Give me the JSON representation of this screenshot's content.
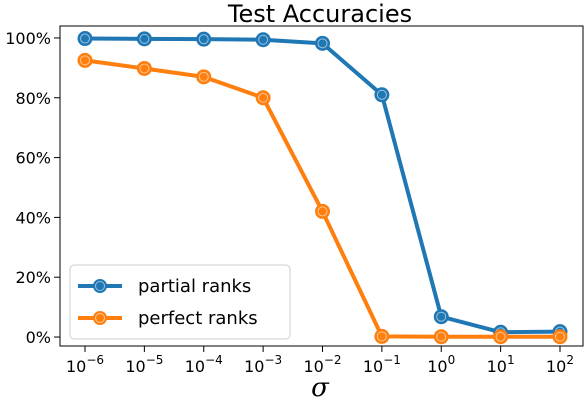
{
  "chart_data": {
    "type": "line",
    "title": "Test Accuracies",
    "xlabel": "σ",
    "ylabel": "",
    "x": [
      1e-06,
      1e-05,
      0.0001,
      0.001,
      0.01,
      0.1,
      1,
      10,
      100
    ],
    "x_tick_labels": [
      {
        "base": "10",
        "exp": "−6"
      },
      {
        "base": "10",
        "exp": "−5"
      },
      {
        "base": "10",
        "exp": "−4"
      },
      {
        "base": "10",
        "exp": "−3"
      },
      {
        "base": "10",
        "exp": "−2"
      },
      {
        "base": "10",
        "exp": "−1"
      },
      {
        "base": "10",
        "exp": "0"
      },
      {
        "base": "10",
        "exp": "1"
      },
      {
        "base": "10",
        "exp": "2"
      }
    ],
    "xscale": "log",
    "ylim": [
      -0.03,
      1.04
    ],
    "y_ticks": [
      0,
      0.2,
      0.4,
      0.6,
      0.8,
      1.0
    ],
    "y_tick_labels": [
      "0%",
      "20%",
      "40%",
      "60%",
      "80%",
      "100%"
    ],
    "grid": false,
    "legend_position": "lower-left",
    "series": [
      {
        "name": "partial ranks",
        "color": "#1f77b4",
        "values": [
          0.998,
          0.997,
          0.996,
          0.994,
          0.982,
          0.81,
          0.068,
          0.016,
          0.018
        ]
      },
      {
        "name": "perfect ranks",
        "color": "#ff7f0e",
        "values": [
          0.925,
          0.898,
          0.87,
          0.8,
          0.42,
          0.002,
          0.001,
          0.001,
          0.001
        ]
      }
    ]
  }
}
